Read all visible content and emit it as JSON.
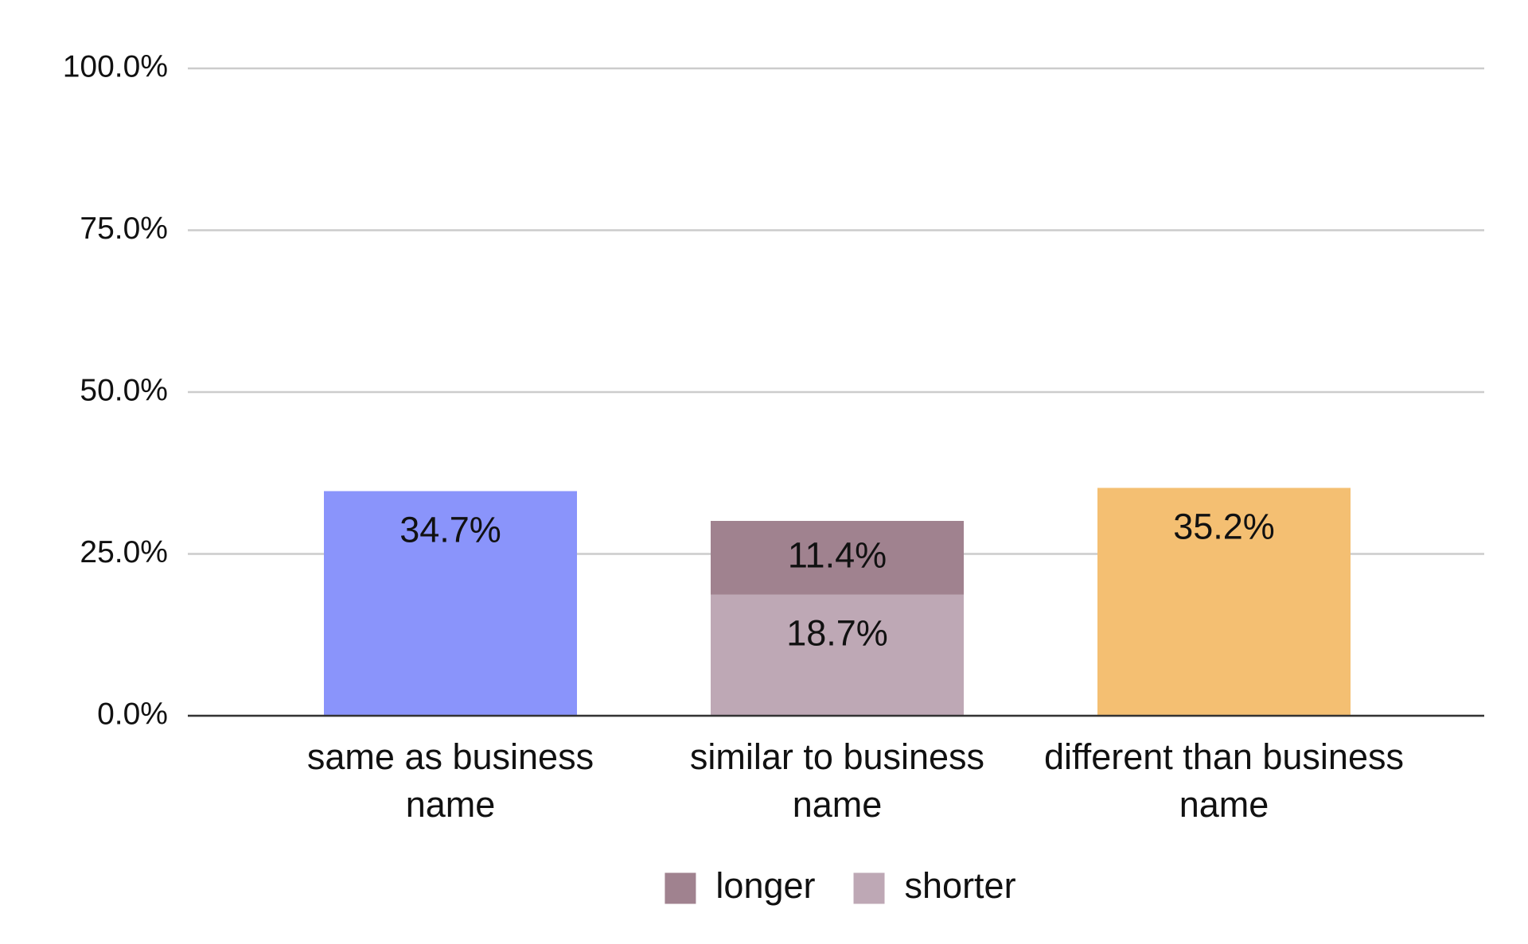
{
  "chart_data": {
    "type": "stacked_bar",
    "categories": [
      "same as business name",
      "similar to business name",
      "different than business name"
    ],
    "series": [
      {
        "colors": [
          "#8a94fb",
          null,
          "#f4bf72"
        ],
        "values": [
          34.7,
          null,
          35.2
        ],
        "value_labels": [
          "34.7%",
          null,
          "35.2%"
        ]
      },
      {
        "name": "shorter",
        "color": "#bea8b5",
        "values": [
          null,
          18.7,
          null
        ],
        "value_labels": [
          null,
          "18.7%",
          null
        ]
      },
      {
        "name": "longer",
        "color": "#a0828f",
        "values": [
          null,
          11.4,
          null
        ],
        "value_labels": [
          null,
          "11.4%",
          null
        ]
      }
    ],
    "ylim": [
      0,
      100
    ],
    "yticks": [
      {
        "value": 0,
        "label": "0.0%"
      },
      {
        "value": 25,
        "label": "25.0%"
      },
      {
        "value": 50,
        "label": "50.0%"
      },
      {
        "value": 75,
        "label": "75.0%"
      },
      {
        "value": 100,
        "label": "100.0%"
      }
    ],
    "grid": true,
    "legend": "bottom"
  }
}
